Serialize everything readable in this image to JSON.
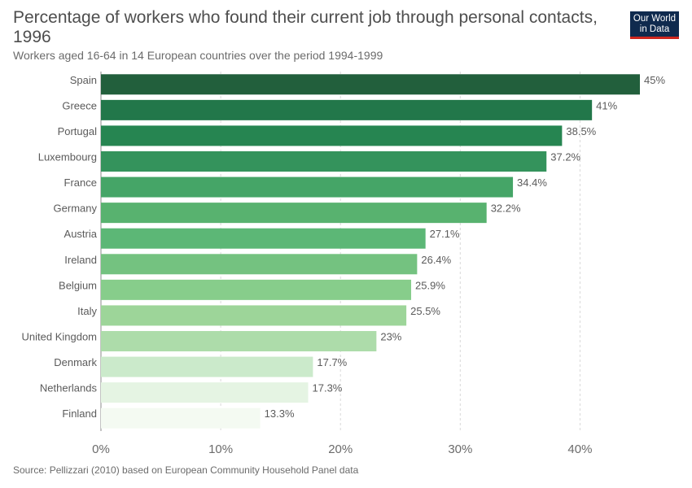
{
  "header": {
    "title": "Percentage of workers who found their current job through personal contacts, 1996",
    "subtitle": "Workers aged 16-64 in 14 European countries over the period 1994-1999",
    "logo_line1": "Our World",
    "logo_line2": "in Data"
  },
  "footer": {
    "source": "Source: Pellizzari (2010) based on European Community Household Panel data"
  },
  "chart_data": {
    "type": "bar",
    "orientation": "horizontal",
    "categories": [
      "Spain",
      "Greece",
      "Portugal",
      "Luxembourg",
      "France",
      "Germany",
      "Austria",
      "Ireland",
      "Belgium",
      "Italy",
      "United Kingdom",
      "Denmark",
      "Netherlands",
      "Finland"
    ],
    "values": [
      45,
      41,
      38.5,
      37.2,
      34.4,
      32.2,
      27.1,
      26.4,
      25.9,
      25.5,
      23,
      17.7,
      17.3,
      13.3
    ],
    "value_labels": [
      "45%",
      "41%",
      "38.5%",
      "37.2%",
      "34.4%",
      "32.2%",
      "27.1%",
      "26.4%",
      "25.9%",
      "25.5%",
      "23%",
      "17.7%",
      "17.3%",
      "13.3%"
    ],
    "colors": [
      "#225f3c",
      "#22774a",
      "#268551",
      "#34935c",
      "#45a567",
      "#58b26f",
      "#5cb776",
      "#74c280",
      "#87cd8b",
      "#9dd599",
      "#addcaa",
      "#cbeacb",
      "#e5f4e3",
      "#f4faf2"
    ],
    "xlim": [
      0,
      45
    ],
    "ticks": [
      0,
      10,
      20,
      30,
      40
    ],
    "tick_labels": [
      "0%",
      "10%",
      "20%",
      "30%",
      "40%"
    ],
    "xlabel": "",
    "ylabel": "",
    "grid": true,
    "legend": "none"
  }
}
